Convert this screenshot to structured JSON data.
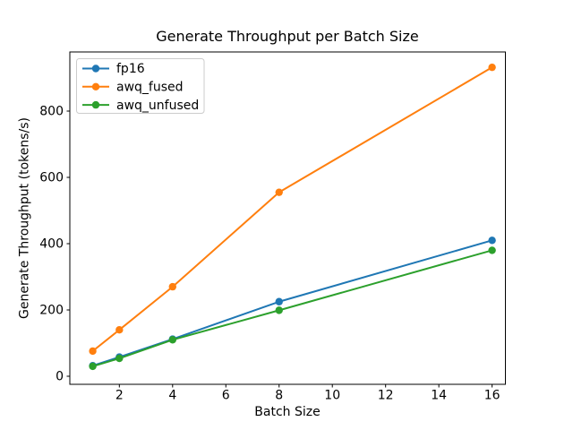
{
  "chart_data": {
    "type": "line",
    "title": "Generate Throughput per Batch Size",
    "xlabel": "Batch Size",
    "ylabel": "Generate Throughput (tokens/s)",
    "x": [
      1,
      2,
      4,
      8,
      16
    ],
    "series": [
      {
        "name": "fp16",
        "color": "#1f77b4",
        "values": [
          32,
          58,
          112,
          225,
          410
        ]
      },
      {
        "name": "awq_fused",
        "color": "#ff7f0e",
        "values": [
          76,
          140,
          270,
          555,
          932
        ]
      },
      {
        "name": "awq_unfused",
        "color": "#2ca02c",
        "values": [
          30,
          54,
          110,
          199,
          380
        ]
      }
    ],
    "xticks": [
      2,
      4,
      6,
      8,
      10,
      12,
      14,
      16
    ],
    "yticks": [
      0,
      200,
      400,
      600,
      800
    ],
    "xlim": [
      0.14,
      16.5
    ],
    "ylim": [
      -24.3,
      978.4
    ],
    "legend_position": "upper left",
    "grid": false,
    "marker": "circle",
    "line_width": 2,
    "marker_radius": 4.2,
    "spine_color": "#000000",
    "legend_border_color": "#cccccc",
    "background_color": "#ffffff"
  }
}
